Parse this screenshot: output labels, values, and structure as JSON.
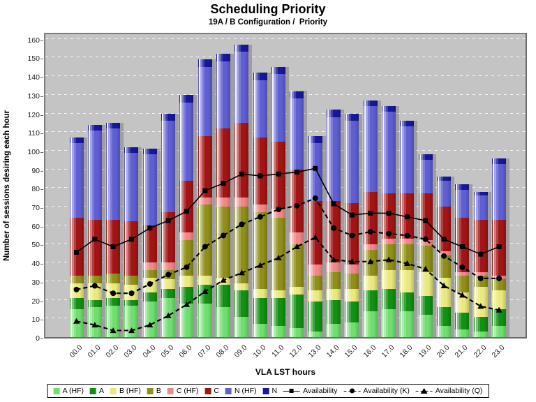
{
  "title": "Scheduling Priority",
  "subtitle": "19A / B Configuration /  Priority",
  "chart_data": {
    "type": "bar",
    "stacked": true,
    "title": "Scheduling Priority",
    "subtitle": "19A / B Configuration /  Priority",
    "xlabel": "VLA LST hours",
    "ylabel": "Number of sessions desiring each hour",
    "ylim": [
      0,
      164
    ],
    "yticks": [
      0,
      10,
      20,
      30,
      40,
      50,
      60,
      70,
      80,
      90,
      100,
      110,
      120,
      130,
      140,
      150,
      160
    ],
    "grid": "horizontal-dashed-white",
    "plot_bg": "#c4c4c4",
    "legend_position": "bottom",
    "categories": [
      "00.0",
      "01.0",
      "02.0",
      "03.0",
      "04.0",
      "05.0",
      "06.0",
      "07.0",
      "08.0",
      "09.0",
      "10.0",
      "11.0",
      "12.0",
      "13.0",
      "14.0",
      "15.0",
      "16.0",
      "17.0",
      "18.0",
      "19.0",
      "20.0",
      "21.0",
      "22.0",
      "23.0"
    ],
    "bar_series": [
      {
        "name": "A (HF)",
        "color": "#70df70",
        "values": [
          15,
          16,
          17,
          17,
          19,
          21,
          18,
          18,
          16,
          11,
          7,
          6,
          5,
          3,
          7,
          8,
          14,
          15,
          14,
          12,
          6,
          4,
          3,
          6
        ]
      },
      {
        "name": "A",
        "color": "#129112",
        "values": [
          6,
          4,
          4,
          3,
          5,
          5,
          9,
          10,
          12,
          14,
          14,
          15,
          18,
          16,
          13,
          11,
          11,
          11,
          10,
          10,
          10,
          9,
          8,
          9
        ]
      },
      {
        "name": "B (HF)",
        "color": "#e9e97e",
        "values": [
          8,
          9,
          8,
          8,
          8,
          5,
          6,
          5,
          4,
          4,
          5,
          4,
          4,
          6,
          6,
          7,
          8,
          10,
          12,
          13,
          16,
          11,
          16,
          10
        ]
      },
      {
        "name": "B",
        "color": "#8f8f19",
        "values": [
          4,
          4,
          5,
          5,
          4,
          5,
          19,
          38,
          38,
          41,
          41,
          39,
          23,
          8,
          9,
          8,
          14,
          14,
          14,
          14,
          12,
          9,
          6,
          6
        ]
      },
      {
        "name": "C (HF)",
        "color": "#ef8888",
        "values": [
          0,
          0,
          0,
          0,
          4,
          4,
          4,
          4,
          5,
          5,
          4,
          5,
          6,
          6,
          5,
          5,
          3,
          3,
          3,
          3,
          2,
          2,
          2,
          2
        ]
      },
      {
        "name": "C",
        "color": "#a31515",
        "values": [
          31,
          30,
          29,
          29,
          20,
          27,
          28,
          33,
          37,
          40,
          36,
          36,
          34,
          34,
          33,
          33,
          28,
          24,
          24,
          25,
          24,
          29,
          28,
          30
        ]
      },
      {
        "name": "N (HF)",
        "color": "#5f5fd3",
        "values": [
          40,
          48,
          49,
          37,
          38,
          49,
          42,
          37,
          36,
          38,
          31,
          36,
          38,
          31,
          45,
          44,
          46,
          44,
          36,
          18,
          14,
          15,
          13,
          30
        ]
      },
      {
        "name": "N",
        "color": "#17179e",
        "values": [
          3,
          3,
          3,
          3,
          3,
          4,
          4,
          4,
          4,
          4,
          4,
          4,
          4,
          4,
          4,
          4,
          3,
          3,
          3,
          3,
          2,
          3,
          2,
          3
        ]
      }
    ],
    "line_series": [
      {
        "name": "Availability",
        "marker": "square",
        "dash": "solid",
        "color": "#000000",
        "values": [
          47,
          54,
          50,
          54,
          60,
          64,
          69,
          80,
          84,
          89,
          88,
          89,
          90,
          92,
          73,
          67,
          68,
          68,
          66,
          64,
          54,
          50,
          46,
          50
        ]
      },
      {
        "name": "Availability (K)",
        "marker": "circle",
        "dash": "dashed",
        "color": "#000000",
        "values": [
          27,
          29,
          25,
          25,
          30,
          35,
          39,
          50,
          56,
          62,
          66,
          70,
          72,
          76,
          60,
          56,
          58,
          57,
          56,
          54,
          45,
          39,
          33,
          33
        ]
      },
      {
        "name": "Availability (Q)",
        "marker": "triangle",
        "dash": "dashed",
        "color": "#000000",
        "values": [
          10,
          8,
          5,
          5,
          8,
          13,
          19,
          26,
          32,
          36,
          40,
          44,
          50,
          55,
          43,
          42,
          42,
          43,
          41,
          38,
          29,
          24,
          18,
          16
        ]
      }
    ]
  }
}
